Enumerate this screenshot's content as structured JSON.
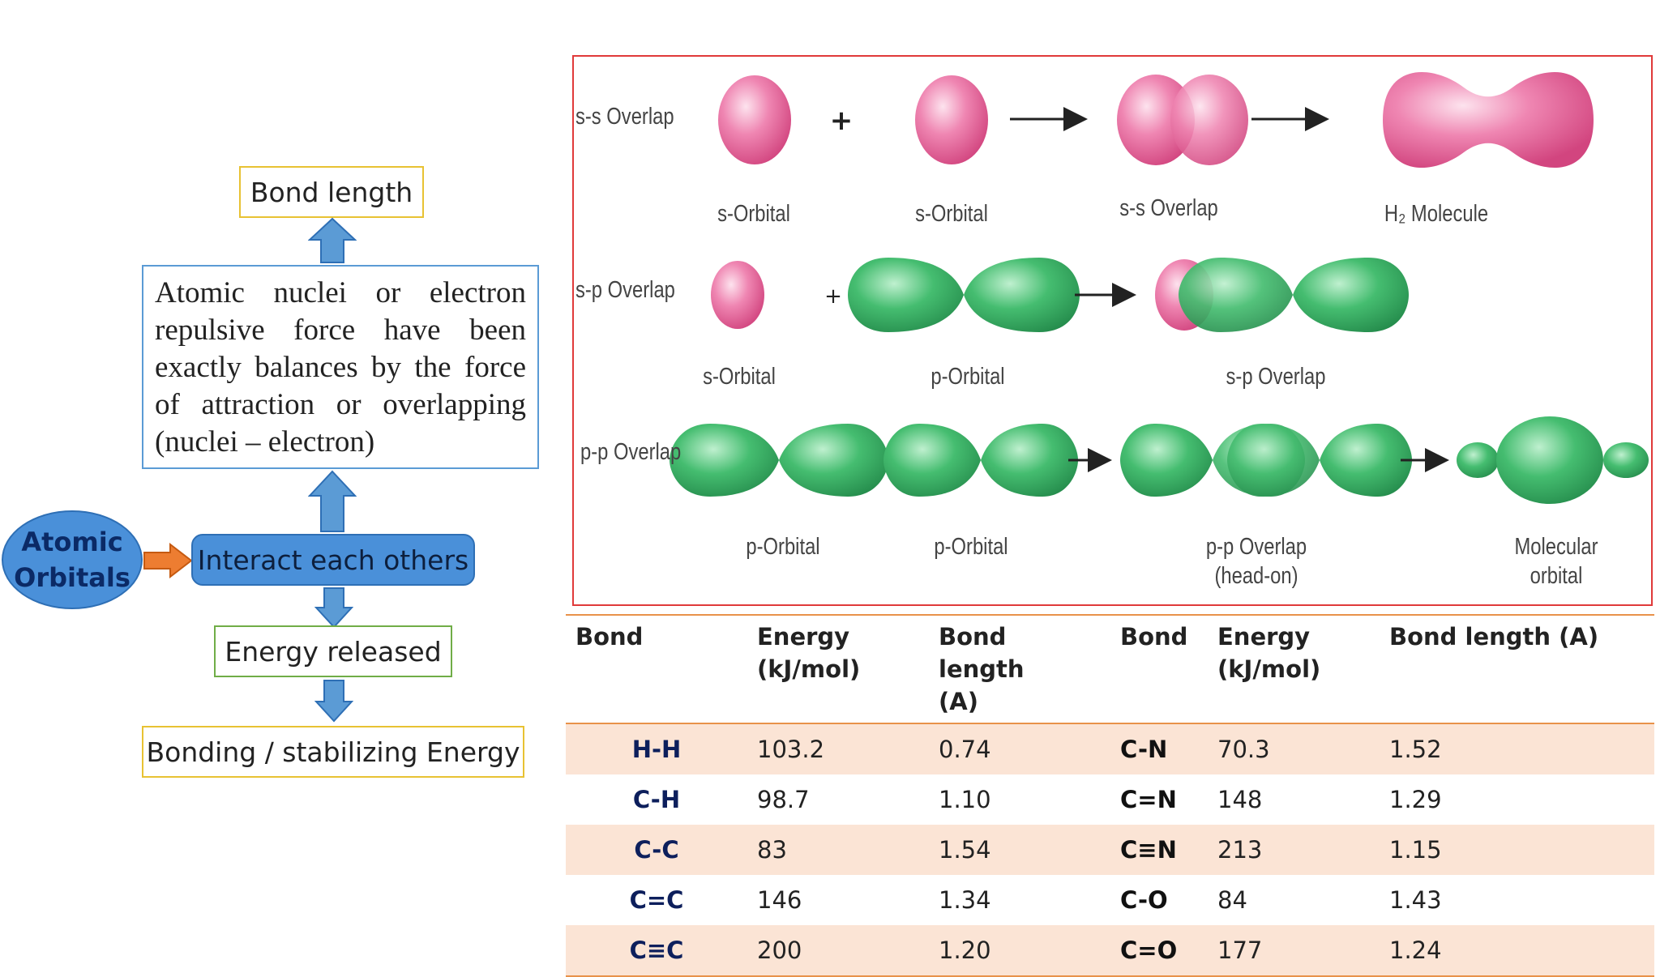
{
  "flow": {
    "bond_length": "Bond length",
    "paragraph": "Atomic nuclei or electron repulsive force have been exactly balances by the force of attraction or overlapping (nuclei – electron)",
    "atomic_line1": "Atomic",
    "atomic_line2": "Orbitals",
    "interact": "Interact each others",
    "energy_released": "Energy released",
    "bonding_energy": "Bonding / stabilizing Energy"
  },
  "orbitals": {
    "rows": [
      {
        "label": "s-s Overlap",
        "captions": [
          "s-Orbital",
          "s-Orbital",
          "s-s Overlap",
          "H₂ Molecule"
        ]
      },
      {
        "label": "s-p Overlap",
        "captions": [
          "s-Orbital",
          "p-Orbital",
          "s-p Overlap"
        ]
      },
      {
        "label": "p-p Overlap",
        "captions": [
          "p-Orbital",
          "p-Orbital",
          "p-p Overlap",
          "(head-on)",
          "Molecular",
          "orbital"
        ]
      }
    ],
    "plus": "+",
    "colors": {
      "s_orbital": "#e8659a",
      "p_orbital": "#3fb86a",
      "frame": "#e03a3a"
    }
  },
  "table": {
    "headers": {
      "bond": "Bond",
      "energy": "Energy (kJ/mol)",
      "length_a": "Bond length",
      "length_b": "(A)",
      "bond2": "Bond",
      "energy2": "Energy (kJ/mol)",
      "length2": "Bond length (A)"
    },
    "rows": [
      {
        "bond": "H-H",
        "energy": "103.2",
        "length": "0.74",
        "bond2": "C-N",
        "energy2": "70.3",
        "length2": "1.52"
      },
      {
        "bond": "C-H",
        "energy": "98.7",
        "length": "1.10",
        "bond2": "C=N",
        "energy2": "148",
        "length2": "1.29"
      },
      {
        "bond": "C-C",
        "energy": "83",
        "length": "1.54",
        "bond2": "C≡N",
        "energy2": "213",
        "length2": "1.15"
      },
      {
        "bond": "C=C",
        "energy": "146",
        "length": "1.34",
        "bond2": "C-O",
        "energy2": "84",
        "length2": "1.43"
      },
      {
        "bond": "C≡C",
        "energy": "200",
        "length": "1.20",
        "bond2": "C=O",
        "energy2": "177",
        "length2": "1.24"
      }
    ]
  }
}
